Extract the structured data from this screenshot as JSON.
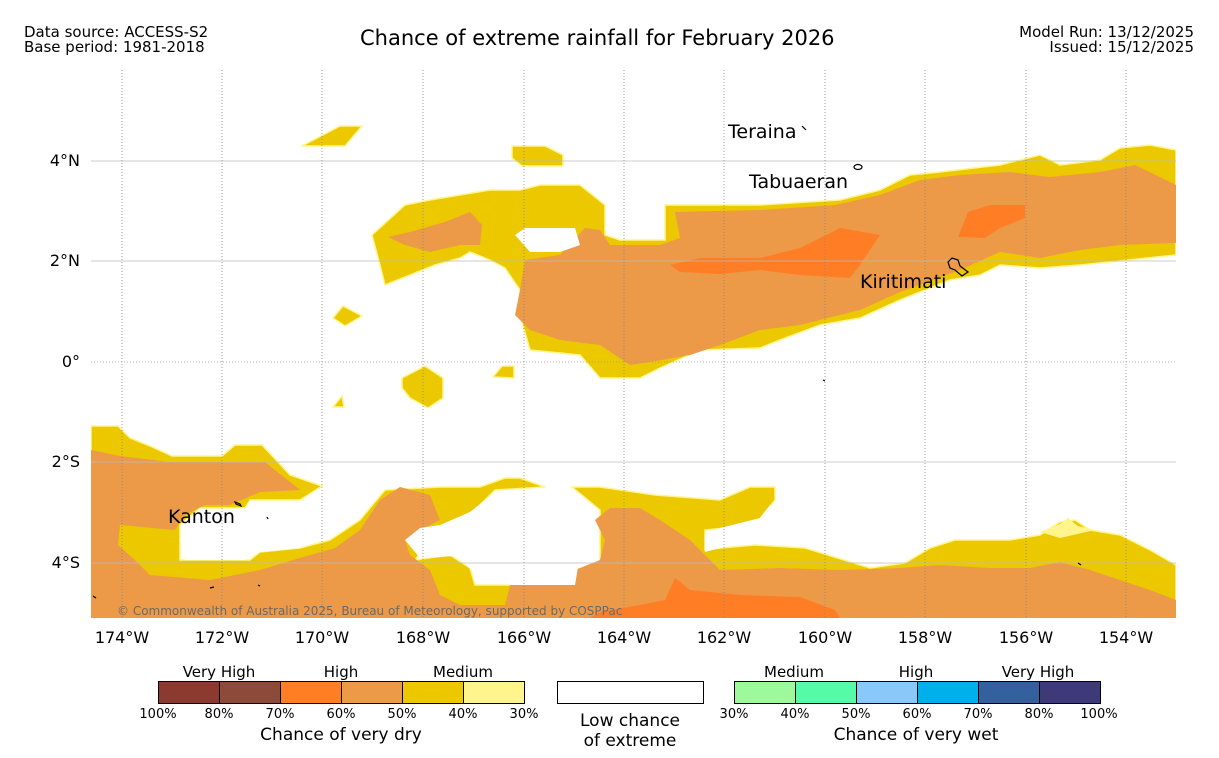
{
  "header": {
    "data_source": "Data source: ACCESS-S2",
    "base_period": "Base period: 1981-2018",
    "title": "Chance of extreme rainfall for February 2026",
    "model_run": "Model Run: 13/12/2025",
    "issued": "Issued: 15/12/2025"
  },
  "map": {
    "lat_labels": [
      "4°N",
      "2°N",
      "0°",
      "2°S",
      "4°S"
    ],
    "lon_labels": [
      "174°W",
      "172°W",
      "170°W",
      "168°W",
      "166°W",
      "164°W",
      "162°W",
      "160°W",
      "158°W",
      "156°W",
      "154°W"
    ],
    "places": [
      "Teraina",
      "Tabuaeran",
      "Kiritimati",
      "Kanton"
    ],
    "credit": "© Commonwealth of Australia 2025, Bureau of Meteorology, supported by COSPPac",
    "colors": {
      "medium_dry": "#ebc800",
      "high_dry": "#ec9a48",
      "high_dry_strong": "#ff7d25",
      "low_medium_dry": "#fff58c",
      "ocean": "#ffffff"
    }
  },
  "legend": {
    "dry": {
      "categories": [
        "Very High",
        "High",
        "Medium"
      ],
      "ticks": [
        "100%",
        "80%",
        "70%",
        "60%",
        "50%",
        "40%",
        "30%"
      ],
      "caption": "Chance of very dry",
      "colors": [
        "#8c3a2f",
        "#8c4b38",
        "#ff7d25",
        "#ec9a48",
        "#ebc800",
        "#fff58c"
      ]
    },
    "low": {
      "caption_line1": "Low chance",
      "caption_line2": "of extreme",
      "color": "#ffffff"
    },
    "wet": {
      "categories": [
        "Medium",
        "High",
        "Very High"
      ],
      "ticks": [
        "30%",
        "40%",
        "50%",
        "60%",
        "70%",
        "80%",
        "100%"
      ],
      "caption": "Chance of very wet",
      "colors": [
        "#9ef99a",
        "#56fba7",
        "#88c8fb",
        "#00b0ea",
        "#34609d",
        "#3e3a7a"
      ]
    }
  }
}
